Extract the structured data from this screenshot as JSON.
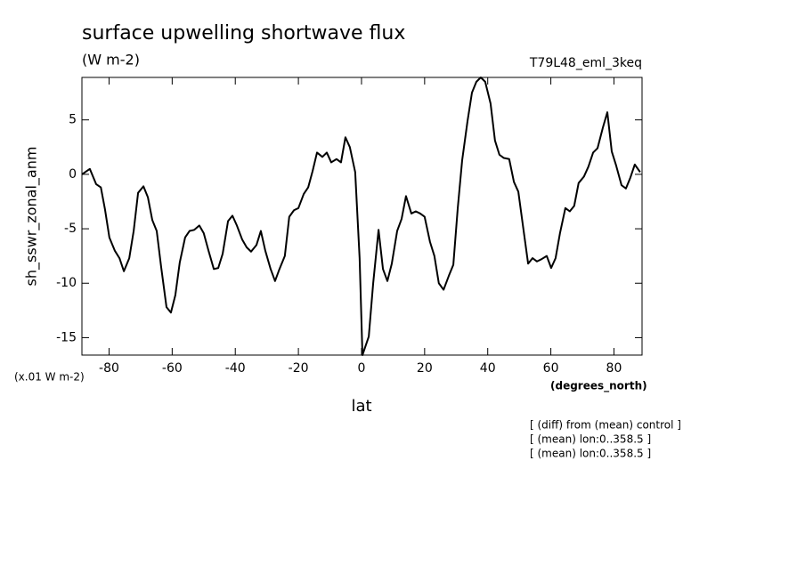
{
  "chart_data": {
    "type": "line",
    "title": "surface upwelling shortwave flux",
    "units_label": "(W m-2)",
    "run_label": "T79L48_eml_3keq",
    "ylabel": "sh_sswr_zonal_anm",
    "scale_note": "(x.01 W m-2)",
    "x_units": "(degrees_north)",
    "xlabel": "lat",
    "notes": [
      "[ (diff) from (mean) control ]",
      "[ (mean) lon:0..358.5 ]",
      "[ (mean) lon:0..358.5 ]"
    ],
    "color": "#000000",
    "xlim": [
      -88.6,
      88.9
    ],
    "ylim": [
      -16.6,
      8.9
    ],
    "xticks": [
      -80,
      -60,
      -40,
      -20,
      0,
      20,
      40,
      60,
      80
    ],
    "yticks": [
      -15,
      -10,
      -5,
      0,
      5
    ],
    "x": [
      -88.6,
      -86.1,
      -84.1,
      -82.6,
      -81.3,
      -79.9,
      -78.2,
      -76.7,
      -75.3,
      -73.6,
      -72.2,
      -70.8,
      -69.1,
      -67.7,
      -66.3,
      -64.9,
      -63.5,
      -61.8,
      -60.4,
      -59.0,
      -57.6,
      -55.9,
      -54.5,
      -53.0,
      -51.4,
      -50.0,
      -48.5,
      -46.8,
      -45.4,
      -44.0,
      -42.3,
      -40.9,
      -39.5,
      -37.8,
      -36.4,
      -35.0,
      -33.3,
      -31.9,
      -30.5,
      -28.8,
      -27.4,
      -26.0,
      -24.3,
      -22.9,
      -21.4,
      -20.0,
      -18.3,
      -16.9,
      -15.5,
      -14.1,
      -12.4,
      -11.0,
      -9.6,
      -7.9,
      -6.5,
      -5.1,
      -3.7,
      -2.0,
      -0.6,
      0.3,
      2.3,
      3.7,
      5.4,
      6.8,
      8.2,
      9.6,
      11.3,
      12.7,
      14.1,
      15.8,
      17.2,
      18.6,
      20.0,
      21.7,
      23.1,
      24.5,
      26.0,
      27.7,
      29.1,
      30.5,
      31.9,
      33.6,
      35.0,
      36.4,
      37.8,
      39.2,
      40.9,
      42.3,
      43.7,
      45.1,
      46.8,
      48.3,
      49.7,
      51.1,
      52.8,
      54.2,
      55.6,
      57.0,
      58.7,
      60.1,
      61.5,
      62.9,
      64.6,
      66.0,
      67.4,
      68.8,
      70.5,
      71.9,
      73.4,
      74.8,
      76.5,
      77.9,
      79.3,
      80.7,
      82.4,
      83.8,
      85.2,
      86.6,
      88.3
    ],
    "values": [
      0,
      0.5,
      -0.9,
      -1.2,
      -3.2,
      -5.8,
      -7.0,
      -7.7,
      -8.9,
      -7.7,
      -5.2,
      -1.7,
      -1.1,
      -2.1,
      -4.2,
      -5.2,
      -8.5,
      -12.2,
      -12.7,
      -11.1,
      -8.1,
      -5.8,
      -5.2,
      -5.1,
      -4.7,
      -5.4,
      -7.0,
      -8.7,
      -8.6,
      -7.3,
      -4.3,
      -3.8,
      -4.7,
      -6.0,
      -6.7,
      -7.1,
      -6.5,
      -5.2,
      -7.0,
      -8.7,
      -9.8,
      -8.7,
      -7.5,
      -3.9,
      -3.3,
      -3.1,
      -1.8,
      -1.2,
      0.3,
      2.0,
      1.6,
      2.0,
      1.1,
      1.4,
      1.1,
      3.4,
      2.5,
      0.2,
      -7.7,
      -16.6,
      -14.9,
      -10.0,
      -5.1,
      -8.7,
      -9.8,
      -8.2,
      -5.2,
      -4.1,
      -2.0,
      -3.6,
      -3.4,
      -3.6,
      -3.9,
      -6.2,
      -7.5,
      -10.0,
      -10.6,
      -9.3,
      -8.3,
      -3.1,
      1.3,
      4.9,
      7.5,
      8.5,
      8.9,
      8.5,
      6.5,
      3.1,
      1.8,
      1.5,
      1.4,
      -0.7,
      -1.6,
      -4.6,
      -8.2,
      -7.7,
      -8.0,
      -7.8,
      -7.5,
      -8.6,
      -7.7,
      -5.4,
      -3.1,
      -3.4,
      -2.9,
      -0.8,
      -0.2,
      0.7,
      2.0,
      2.4,
      4.3,
      5.7,
      2.1,
      0.8,
      -1.0,
      -1.3,
      -0.3,
      0.9,
      0.2
    ]
  }
}
